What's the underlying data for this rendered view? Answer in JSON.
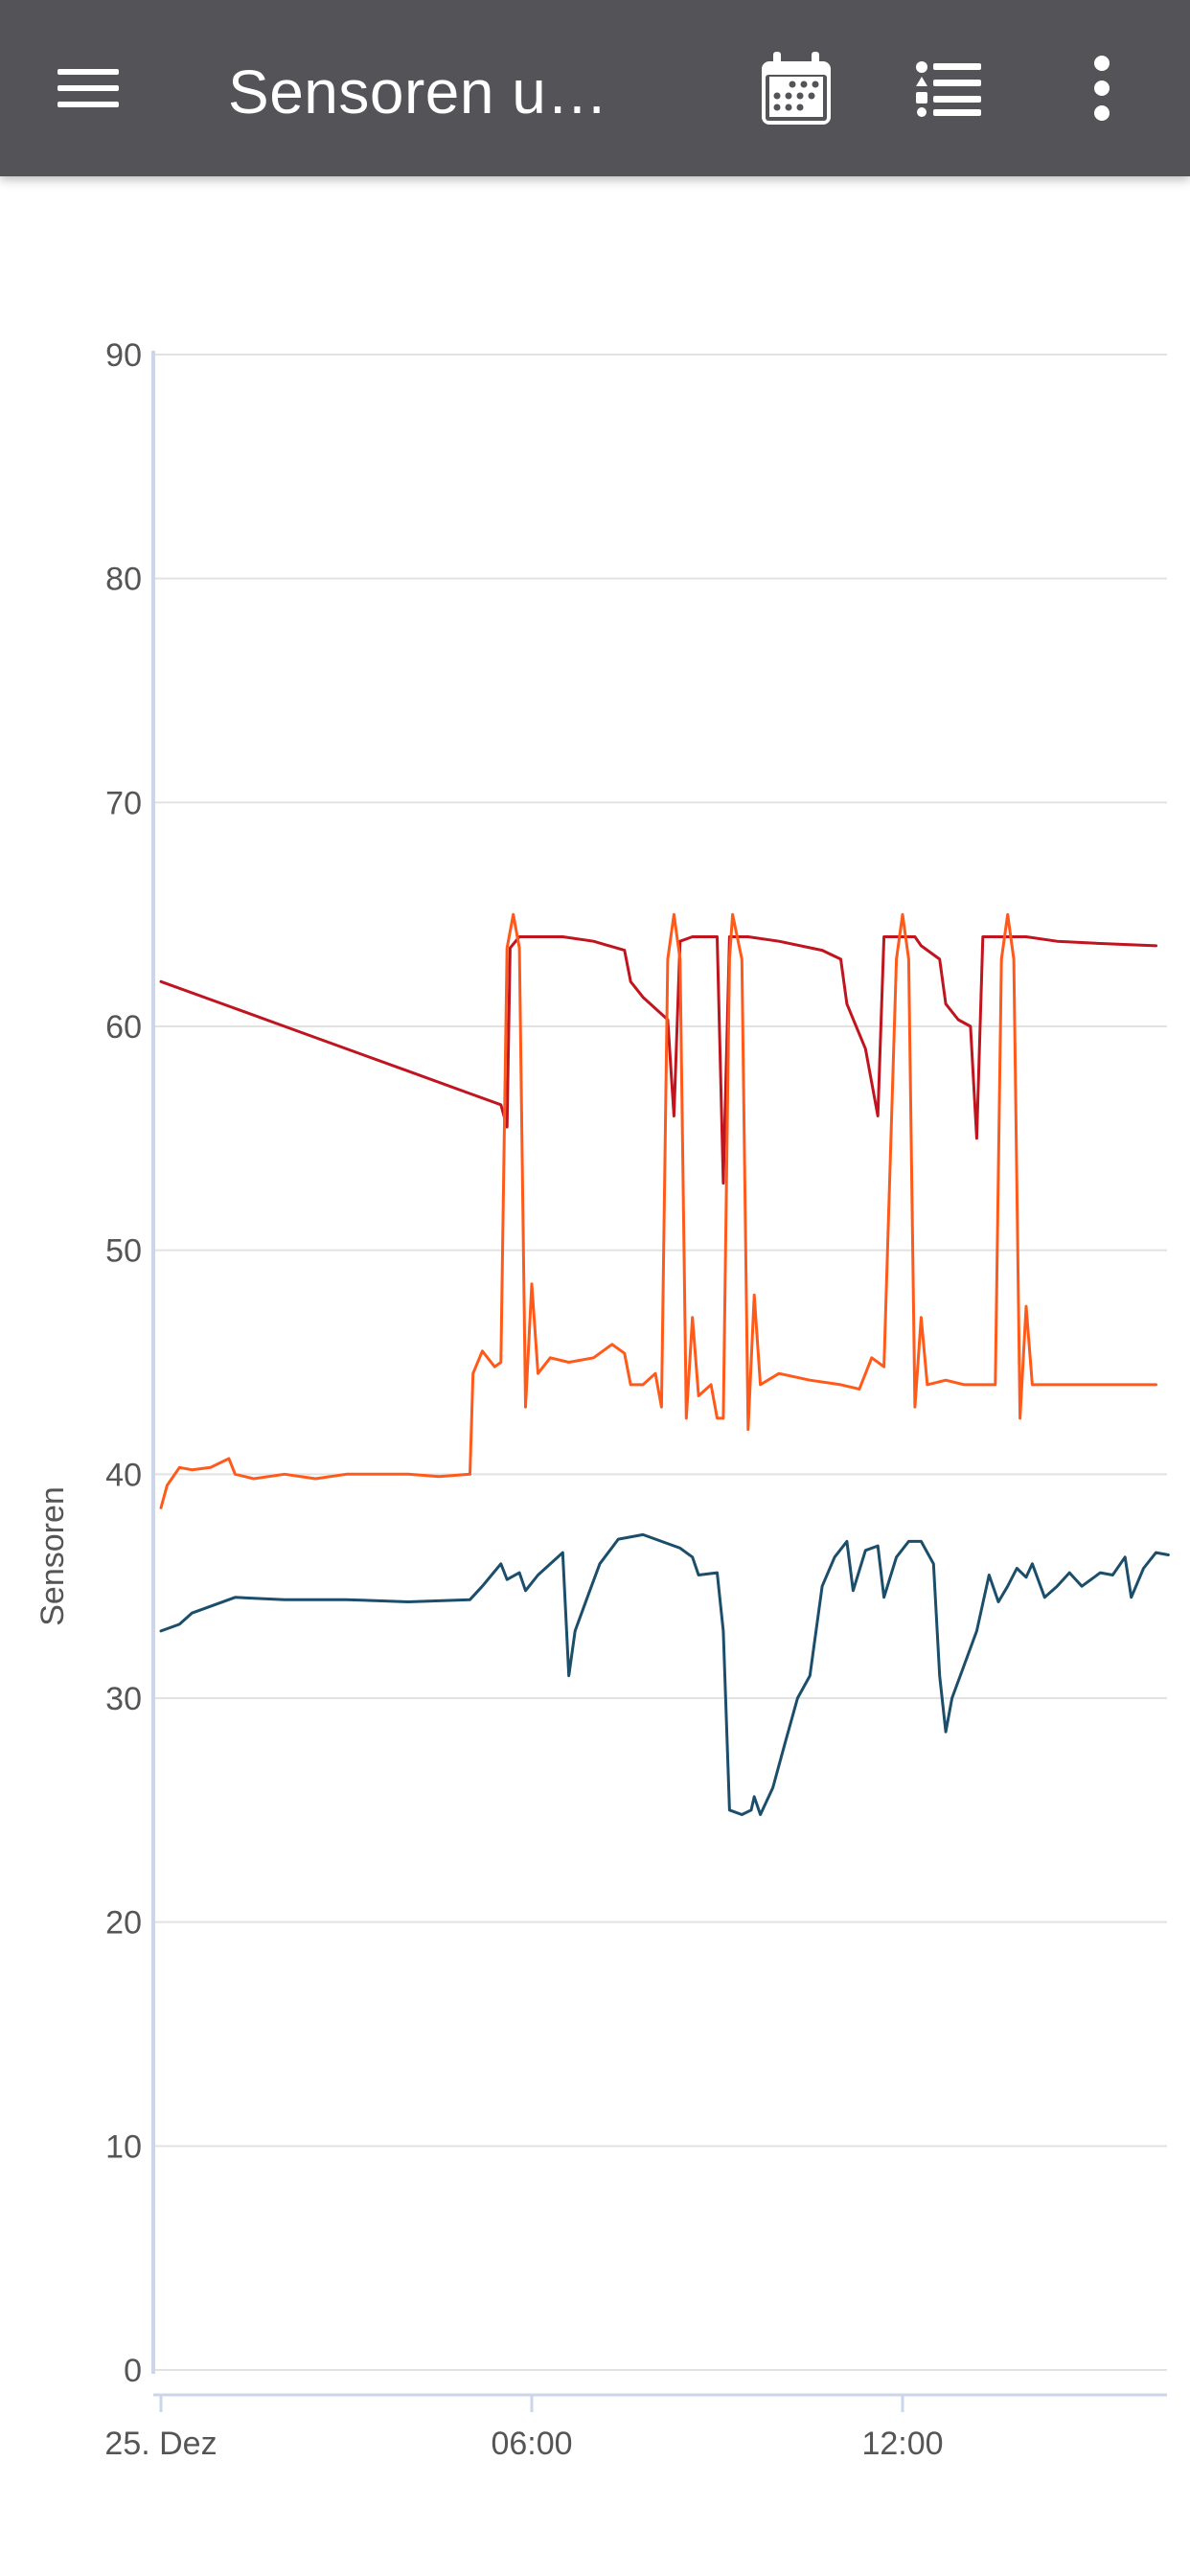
{
  "appbar": {
    "title": "Sensoren u…",
    "menu_icon": "hamburger-menu-icon",
    "calendar_icon": "calendar-icon",
    "list_icon": "list-icon",
    "more_icon": "more-vert-icon",
    "background": "#545458"
  },
  "chart_data": {
    "type": "line",
    "ylabel": "Sensoren",
    "ylim": [
      0,
      90
    ],
    "y_ticks": [
      "0",
      "10",
      "20",
      "30",
      "40",
      "50",
      "60",
      "70",
      "80",
      "90"
    ],
    "x_ticks": [
      "25. Dez",
      "06:00",
      "12:00"
    ],
    "x_tick_hours": [
      0,
      6,
      12
    ],
    "xlim_hours": [
      0,
      16.3
    ],
    "grid": true,
    "series": [
      {
        "color": "#c0141f",
        "points": [
          [
            0,
            62
          ],
          [
            1,
            61
          ],
          [
            2,
            60
          ],
          [
            3,
            59
          ],
          [
            4,
            58
          ],
          [
            5,
            57
          ],
          [
            5.5,
            56.5
          ],
          [
            5.6,
            55.5
          ],
          [
            5.65,
            63.5
          ],
          [
            5.8,
            64
          ],
          [
            6.5,
            64
          ],
          [
            7,
            63.8
          ],
          [
            7.5,
            63.4
          ],
          [
            7.6,
            62
          ],
          [
            7.8,
            61.3
          ],
          [
            8.2,
            60.3
          ],
          [
            8.3,
            56
          ],
          [
            8.4,
            63.8
          ],
          [
            8.6,
            64
          ],
          [
            9,
            64
          ],
          [
            9.1,
            53
          ],
          [
            9.2,
            64
          ],
          [
            9.5,
            64
          ],
          [
            10,
            63.8
          ],
          [
            10.7,
            63.4
          ],
          [
            11,
            63
          ],
          [
            11.1,
            61
          ],
          [
            11.4,
            59
          ],
          [
            11.6,
            56
          ],
          [
            11.7,
            64
          ],
          [
            12.2,
            64
          ],
          [
            12.3,
            63.6
          ],
          [
            12.6,
            63
          ],
          [
            12.7,
            61
          ],
          [
            12.9,
            60.3
          ],
          [
            13.1,
            60
          ],
          [
            13.2,
            55
          ],
          [
            13.3,
            64
          ],
          [
            13.5,
            64
          ],
          [
            14,
            64
          ],
          [
            14.5,
            63.8
          ],
          [
            15.2,
            63.7
          ],
          [
            16.1,
            63.6
          ]
        ]
      },
      {
        "color": "#ff5a1a",
        "points": [
          [
            0,
            38.5
          ],
          [
            0.1,
            39.5
          ],
          [
            0.3,
            40.3
          ],
          [
            0.5,
            40.2
          ],
          [
            0.8,
            40.3
          ],
          [
            1.1,
            40.7
          ],
          [
            1.2,
            40
          ],
          [
            1.5,
            39.8
          ],
          [
            2,
            40
          ],
          [
            2.5,
            39.8
          ],
          [
            3,
            40
          ],
          [
            3.5,
            40
          ],
          [
            4,
            40
          ],
          [
            4.5,
            39.9
          ],
          [
            5,
            40
          ],
          [
            5.05,
            44.5
          ],
          [
            5.2,
            45.5
          ],
          [
            5.4,
            44.8
          ],
          [
            5.5,
            45
          ],
          [
            5.6,
            63.5
          ],
          [
            5.7,
            65
          ],
          [
            5.8,
            63.5
          ],
          [
            5.9,
            43
          ],
          [
            6,
            48.5
          ],
          [
            6.1,
            44.5
          ],
          [
            6.3,
            45.2
          ],
          [
            6.6,
            45
          ],
          [
            7,
            45.2
          ],
          [
            7.3,
            45.8
          ],
          [
            7.5,
            45.4
          ],
          [
            7.6,
            44
          ],
          [
            7.8,
            44
          ],
          [
            8,
            44.5
          ],
          [
            8.1,
            43
          ],
          [
            8.2,
            63
          ],
          [
            8.3,
            65
          ],
          [
            8.4,
            63
          ],
          [
            8.5,
            42.5
          ],
          [
            8.6,
            47
          ],
          [
            8.7,
            43.5
          ],
          [
            8.9,
            44
          ],
          [
            9,
            42.5
          ],
          [
            9.1,
            42.5
          ],
          [
            9.2,
            63
          ],
          [
            9.25,
            65
          ],
          [
            9.4,
            63
          ],
          [
            9.5,
            42
          ],
          [
            9.6,
            48
          ],
          [
            9.7,
            44
          ],
          [
            10,
            44.5
          ],
          [
            10.5,
            44.2
          ],
          [
            11,
            44
          ],
          [
            11.3,
            43.8
          ],
          [
            11.5,
            45.2
          ],
          [
            11.7,
            44.8
          ],
          [
            11.9,
            63
          ],
          [
            12,
            65
          ],
          [
            12.1,
            63
          ],
          [
            12.2,
            43
          ],
          [
            12.3,
            47
          ],
          [
            12.4,
            44
          ],
          [
            12.7,
            44.2
          ],
          [
            13,
            44
          ],
          [
            13.2,
            44
          ],
          [
            13.5,
            44
          ],
          [
            13.6,
            63
          ],
          [
            13.7,
            65
          ],
          [
            13.8,
            63
          ],
          [
            13.9,
            42.5
          ],
          [
            14,
            47.5
          ],
          [
            14.1,
            44
          ],
          [
            14.5,
            44
          ],
          [
            15,
            44
          ],
          [
            15.5,
            44
          ],
          [
            16,
            44
          ],
          [
            16.1,
            44
          ]
        ]
      },
      {
        "color": "#1b4e6b",
        "points": [
          [
            0,
            33
          ],
          [
            0.3,
            33.3
          ],
          [
            0.5,
            33.8
          ],
          [
            0.8,
            34.1
          ],
          [
            1.2,
            34.5
          ],
          [
            2,
            34.4
          ],
          [
            3,
            34.4
          ],
          [
            4,
            34.3
          ],
          [
            5,
            34.4
          ],
          [
            5.2,
            35
          ],
          [
            5.5,
            36
          ],
          [
            5.6,
            35.3
          ],
          [
            5.8,
            35.6
          ],
          [
            5.9,
            34.8
          ],
          [
            6.1,
            35.5
          ],
          [
            6.5,
            36.5
          ],
          [
            6.6,
            31
          ],
          [
            6.7,
            33
          ],
          [
            6.9,
            34.5
          ],
          [
            7.1,
            36
          ],
          [
            7.4,
            37.1
          ],
          [
            7.8,
            37.3
          ],
          [
            8.1,
            37
          ],
          [
            8.4,
            36.7
          ],
          [
            8.6,
            36.3
          ],
          [
            8.7,
            35.5
          ],
          [
            9,
            35.6
          ],
          [
            9.1,
            33
          ],
          [
            9.2,
            25
          ],
          [
            9.4,
            24.8
          ],
          [
            9.55,
            25
          ],
          [
            9.6,
            25.6
          ],
          [
            9.7,
            24.8
          ],
          [
            9.9,
            26
          ],
          [
            10.1,
            28
          ],
          [
            10.3,
            30
          ],
          [
            10.5,
            31
          ],
          [
            10.7,
            35
          ],
          [
            10.9,
            36.3
          ],
          [
            11.1,
            37
          ],
          [
            11.2,
            34.8
          ],
          [
            11.4,
            36.6
          ],
          [
            11.6,
            36.8
          ],
          [
            11.7,
            34.5
          ],
          [
            11.9,
            36.3
          ],
          [
            12.1,
            37
          ],
          [
            12.3,
            37
          ],
          [
            12.5,
            36
          ],
          [
            12.6,
            31
          ],
          [
            12.7,
            28.5
          ],
          [
            12.8,
            30
          ],
          [
            13,
            31.5
          ],
          [
            13.2,
            33
          ],
          [
            13.4,
            35.5
          ],
          [
            13.55,
            34.3
          ],
          [
            13.7,
            35
          ],
          [
            13.85,
            35.8
          ],
          [
            14,
            35.4
          ],
          [
            14.1,
            36
          ],
          [
            14.3,
            34.5
          ],
          [
            14.5,
            35
          ],
          [
            14.7,
            35.6
          ],
          [
            14.9,
            35
          ],
          [
            15.2,
            35.6
          ],
          [
            15.4,
            35.5
          ],
          [
            15.6,
            36.3
          ],
          [
            15.7,
            34.5
          ],
          [
            15.9,
            35.8
          ],
          [
            16.1,
            36.5
          ],
          [
            16.3,
            36.4
          ]
        ]
      }
    ]
  }
}
